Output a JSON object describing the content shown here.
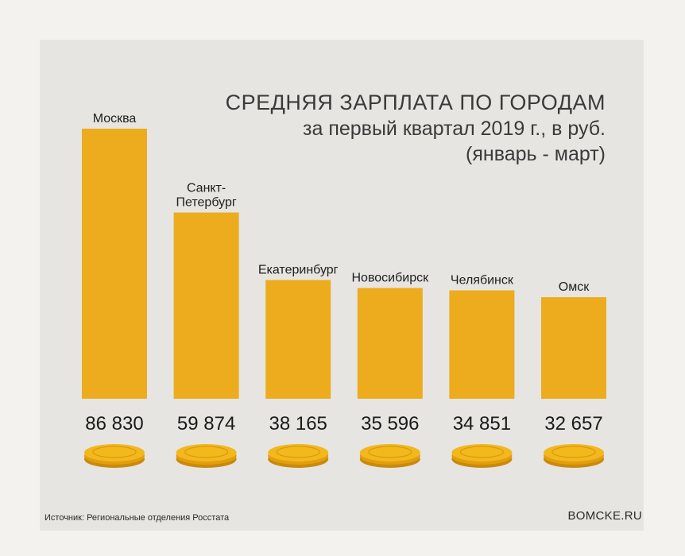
{
  "chart_data": {
    "type": "bar",
    "title": "СРЕДНЯЯ ЗАРПЛАТА ПО ГОРОДАМ",
    "subtitle_lines": [
      "за первый квартал 2019 г., в руб.",
      "(январь - март)"
    ],
    "categories": [
      "Москва",
      "Санкт-\nПетербург",
      "Екатеринбург",
      "Новосибирск",
      "Челябинск",
      "Омск"
    ],
    "values": [
      86830,
      59874,
      38165,
      35596,
      34851,
      32657
    ],
    "value_labels": [
      "86 830",
      "59 874",
      "38 165",
      "35 596",
      "34 851",
      "32 657"
    ],
    "ylim": [
      0,
      86830
    ],
    "xlabel": "",
    "ylabel": "",
    "bar_color": "#ecac1d",
    "coin_color": "#f2b81c"
  },
  "footer": {
    "source": "Источник: Региональные отделения Росстата",
    "site": "BOMCKE.RU"
  },
  "icons": {
    "coin": "coin-icon"
  }
}
